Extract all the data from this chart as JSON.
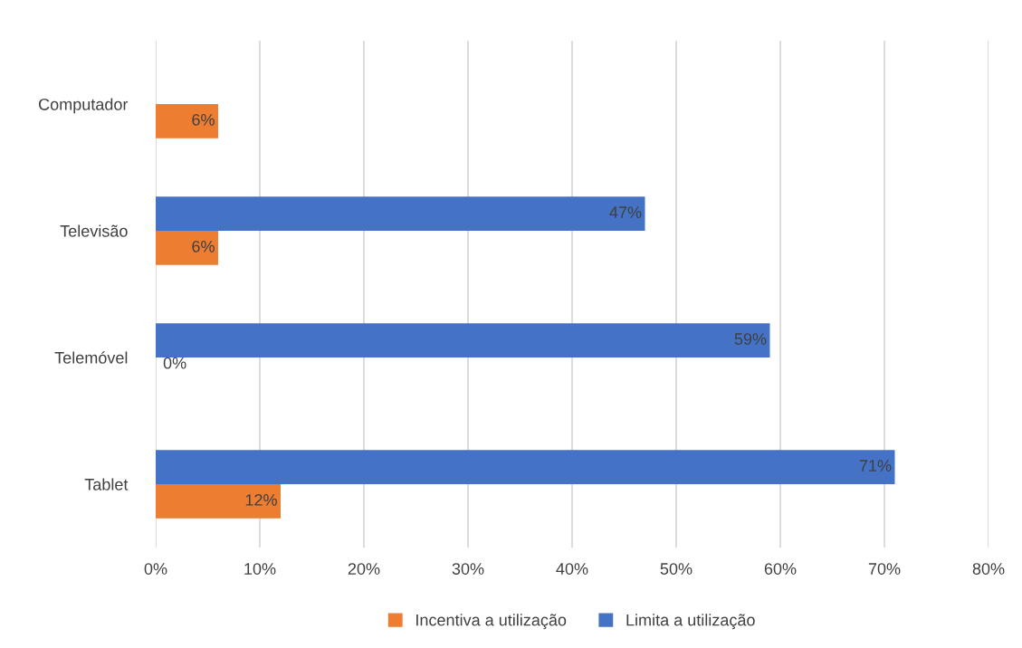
{
  "chart_data": {
    "type": "bar",
    "orientation": "horizontal",
    "categories": [
      "Computador",
      "Televisão",
      "Telemóvel",
      "Tablet"
    ],
    "series": [
      {
        "name": "Incentiva a utilização",
        "color": "#ed7d31",
        "values": [
          6,
          6,
          0,
          12
        ],
        "value_labels": [
          "6%",
          "6%",
          "0%",
          "12%"
        ]
      },
      {
        "name": "Limita a utilização",
        "color": "#4472c4",
        "values": [
          null,
          47,
          59,
          71
        ],
        "value_labels": [
          null,
          "47%",
          "59%",
          "71%"
        ]
      }
    ],
    "xlim": [
      0,
      80
    ],
    "xticks": [
      {
        "value": 0,
        "label": "0%"
      },
      {
        "value": 10,
        "label": "10%"
      },
      {
        "value": 20,
        "label": "20%"
      },
      {
        "value": 30,
        "label": "30%"
      },
      {
        "value": 40,
        "label": "40%"
      },
      {
        "value": 50,
        "label": "50%"
      },
      {
        "value": 60,
        "label": "60%"
      },
      {
        "value": 70,
        "label": "70%"
      },
      {
        "value": 80,
        "label": "80%"
      }
    ],
    "grid": "x",
    "legend": "bottom"
  }
}
